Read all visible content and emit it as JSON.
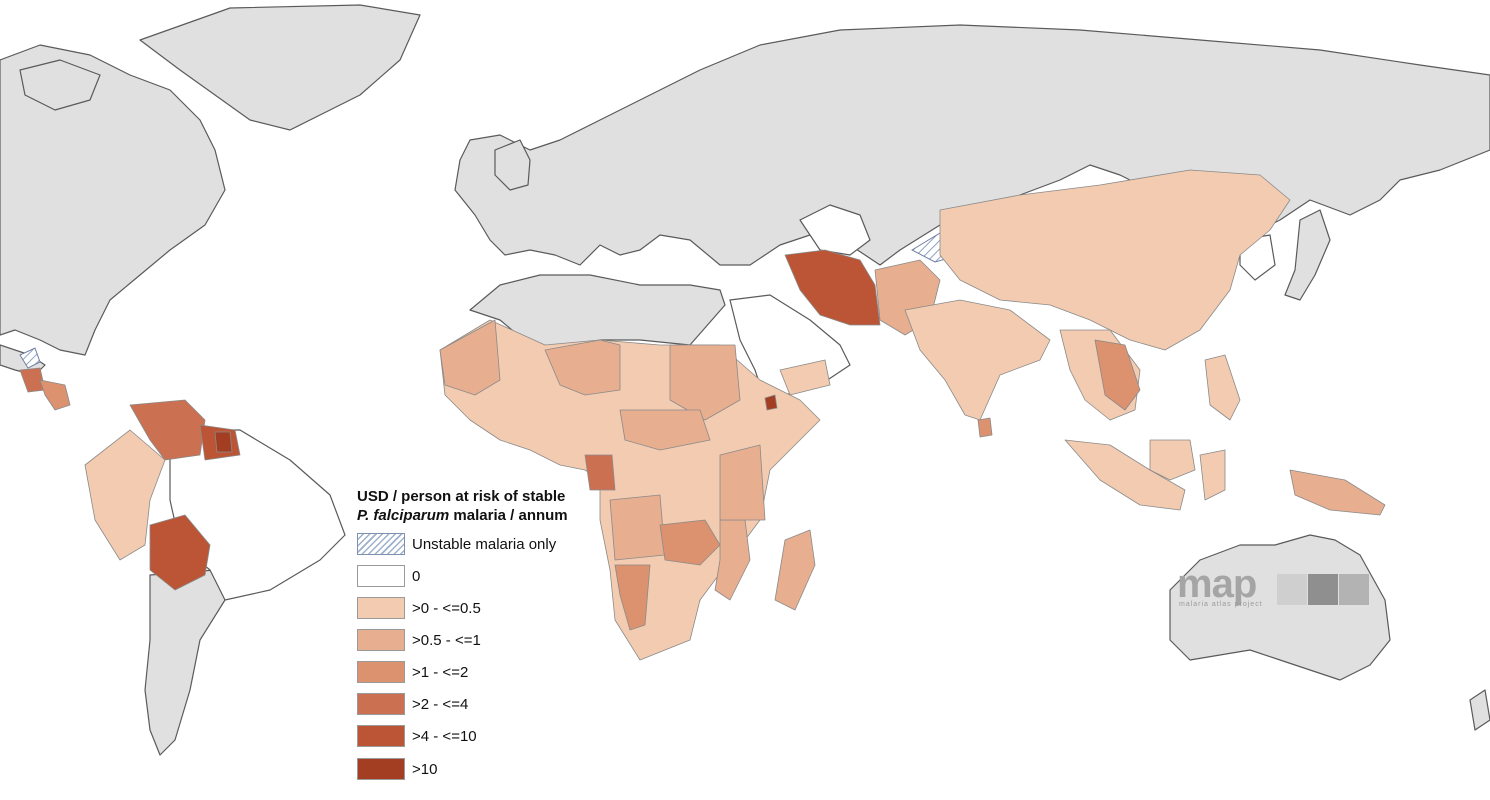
{
  "legend": {
    "title_line1": "USD / person at risk of stable",
    "title_italic": "P. falciparum",
    "title_line2_rest": " malaria / annum",
    "items": [
      {
        "label": "Unstable malaria only",
        "color": "hatched",
        "pattern": "diagonal hatch"
      },
      {
        "label": "0",
        "color": "#ffffff"
      },
      {
        "label": ">0 - <=0.5",
        "color": "#f2cbb0"
      },
      {
        "label": ">0.5 - <=1",
        "color": "#e8ae90"
      },
      {
        "label": ">1 - <=2",
        "color": "#dc916f"
      },
      {
        "label": ">2 - <=4",
        "color": "#cc7052"
      },
      {
        "label": ">4 - <=10",
        "color": "#bb5535"
      },
      {
        "label": ">10",
        "color": "#a33e22"
      }
    ]
  },
  "colors": {
    "no_data_land": "#e0e0e0",
    "outline": "#5a5a5a",
    "ocean": "#ffffff"
  },
  "logo": {
    "wordmark": "map",
    "subtitle": "malaria atlas project"
  }
}
